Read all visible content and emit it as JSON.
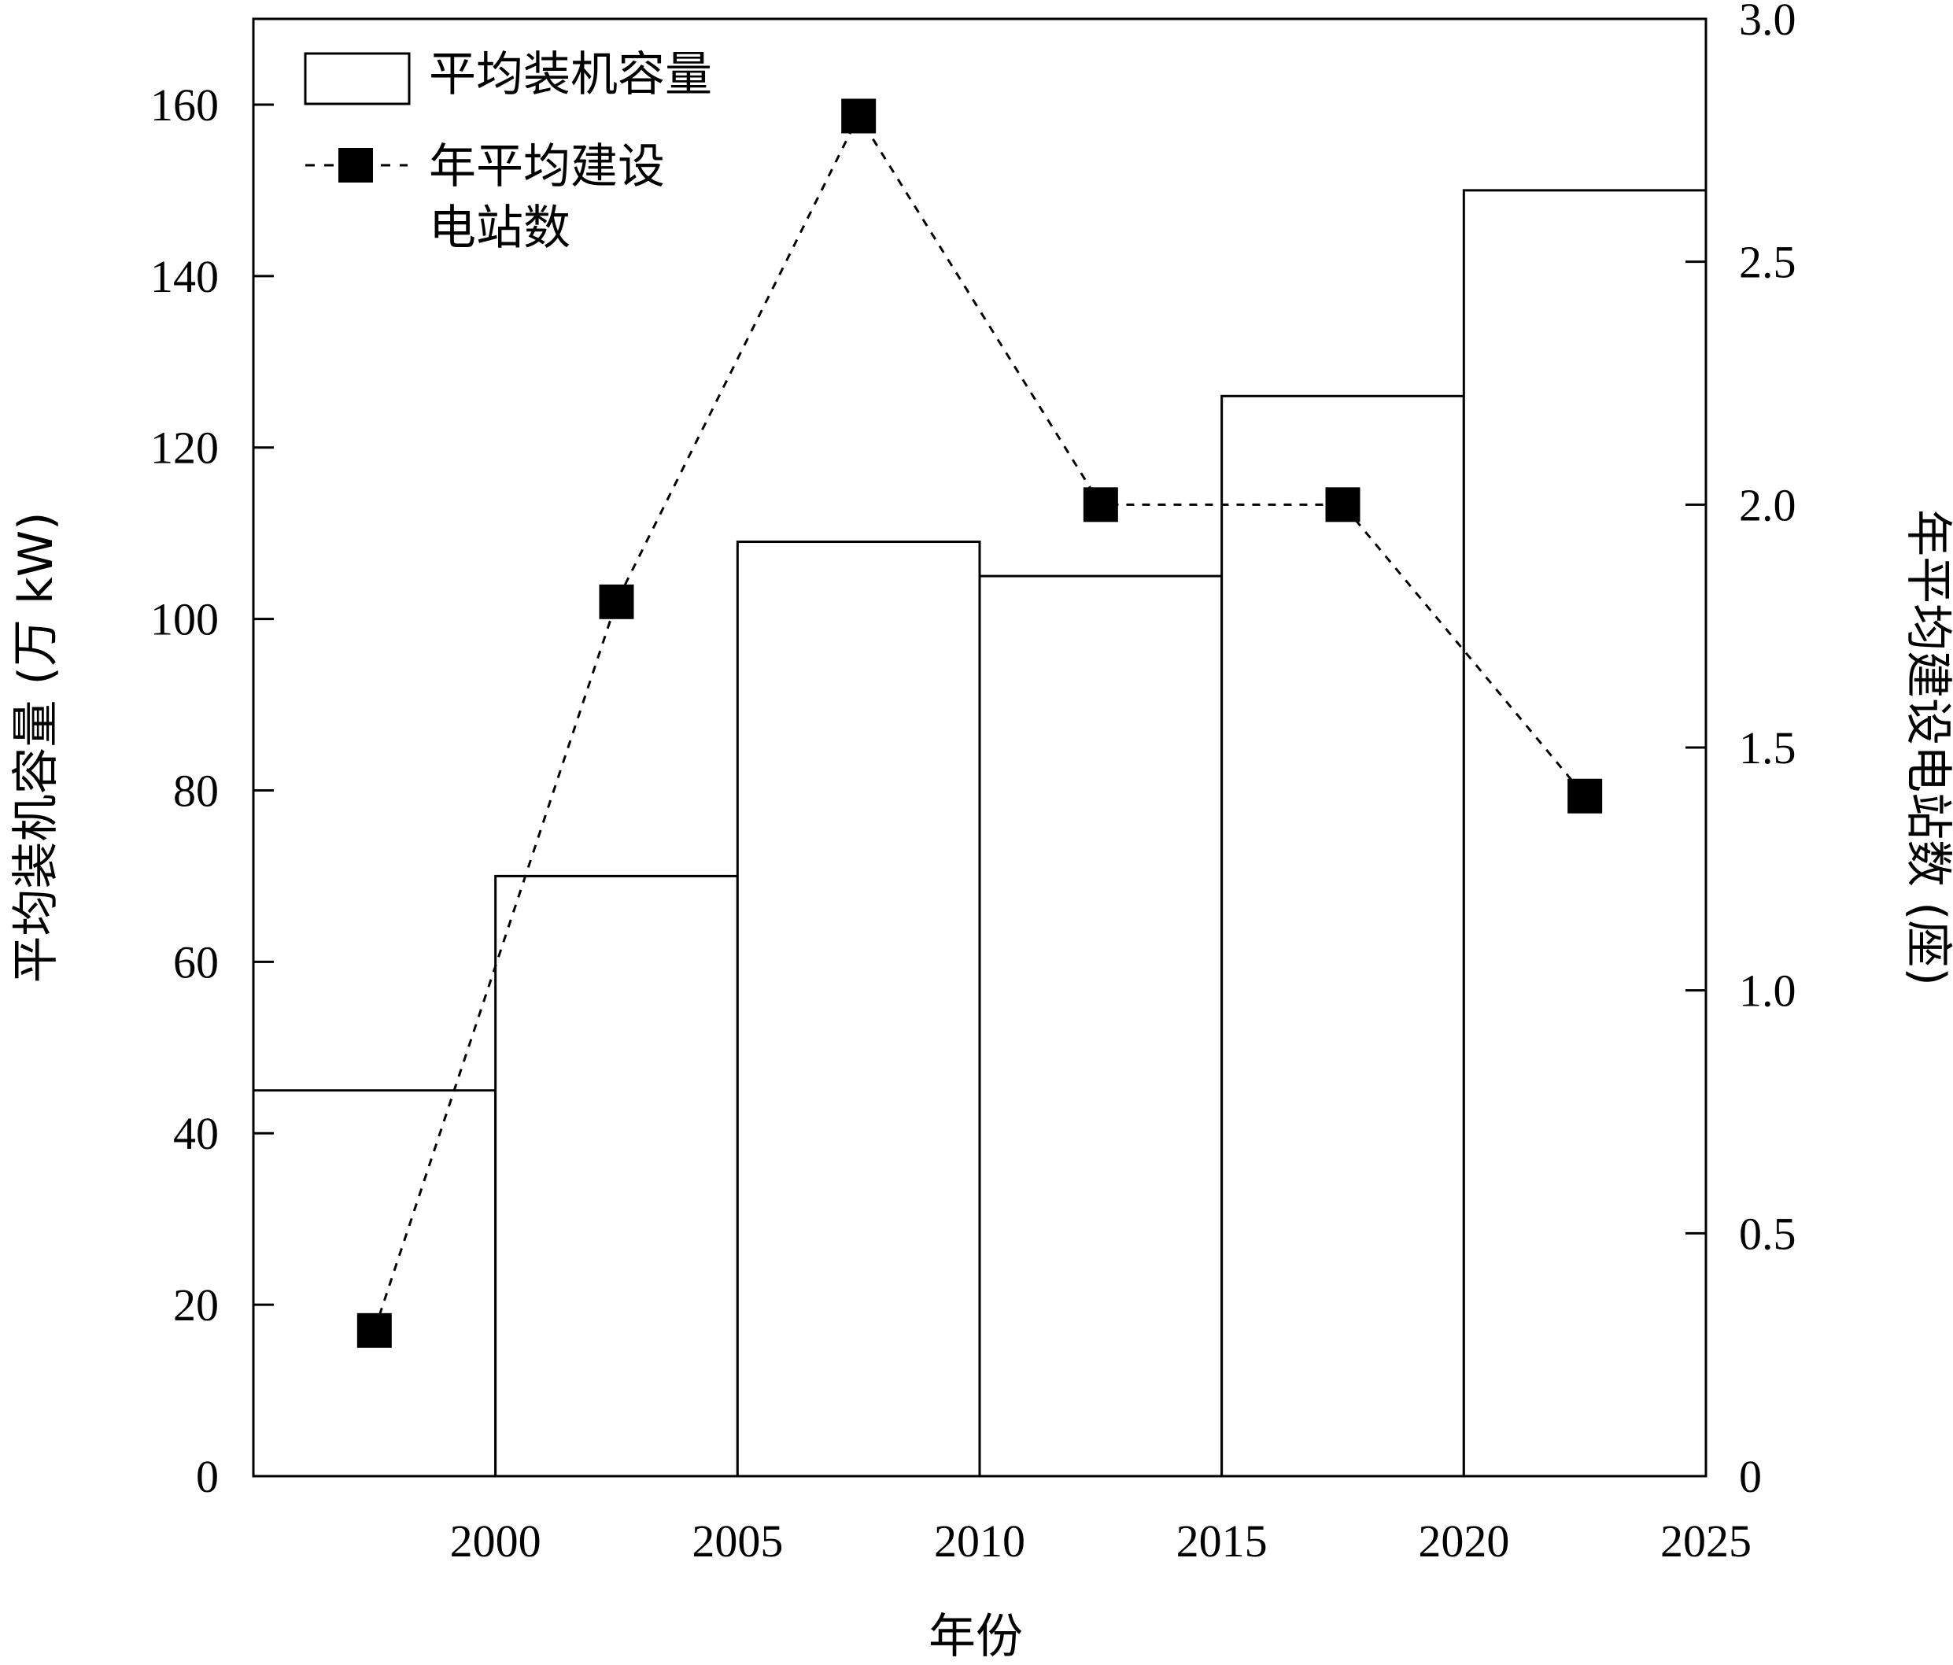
{
  "chart_data": {
    "type": "bar+line",
    "title": "",
    "xlabel": "年份",
    "ylabel_left": "平均装机容量 (万 kW)",
    "ylabel_right": "年平均建设电站数 (座)",
    "xlim": [
      1995,
      2025
    ],
    "xticks": [
      2000,
      2005,
      2010,
      2015,
      2020,
      2025
    ],
    "ylim_left": [
      0,
      170
    ],
    "yticks_left": [
      0,
      20,
      40,
      60,
      80,
      100,
      120,
      140,
      160
    ],
    "ylim_right": [
      0,
      3.0
    ],
    "yticks_right": [
      "0",
      "0.5",
      "1.0",
      "1.5",
      "2.0",
      "2.5",
      "3.0"
    ],
    "yticks_right_values": [
      0,
      0.5,
      1.0,
      1.5,
      2.0,
      2.5,
      3.0
    ],
    "legend": [
      {
        "name": "平均装机容量",
        "kind": "bar"
      },
      {
        "name_lines": [
          "年平均建设",
          "电站数"
        ],
        "kind": "line-square"
      }
    ],
    "legend_position": "top-left",
    "grid": false,
    "series": [
      {
        "name": "平均装机容量",
        "type": "bar",
        "axis": "left",
        "bins": [
          {
            "start": 1995,
            "end": 2000,
            "value": 45
          },
          {
            "start": 2000,
            "end": 2005,
            "value": 70
          },
          {
            "start": 2005,
            "end": 2010,
            "value": 109
          },
          {
            "start": 2010,
            "end": 2015,
            "value": 105
          },
          {
            "start": 2015,
            "end": 2020,
            "value": 126
          },
          {
            "start": 2020,
            "end": 2025,
            "value": 150
          }
        ]
      },
      {
        "name": "年平均建设电站数",
        "type": "line",
        "axis": "right",
        "line_style": "dashed",
        "marker": "square",
        "x": [
          1997.5,
          2002.5,
          2007.5,
          2012.5,
          2017.5,
          2022.5
        ],
        "y": [
          0.3,
          1.8,
          2.8,
          2.0,
          2.0,
          1.4
        ]
      }
    ]
  }
}
